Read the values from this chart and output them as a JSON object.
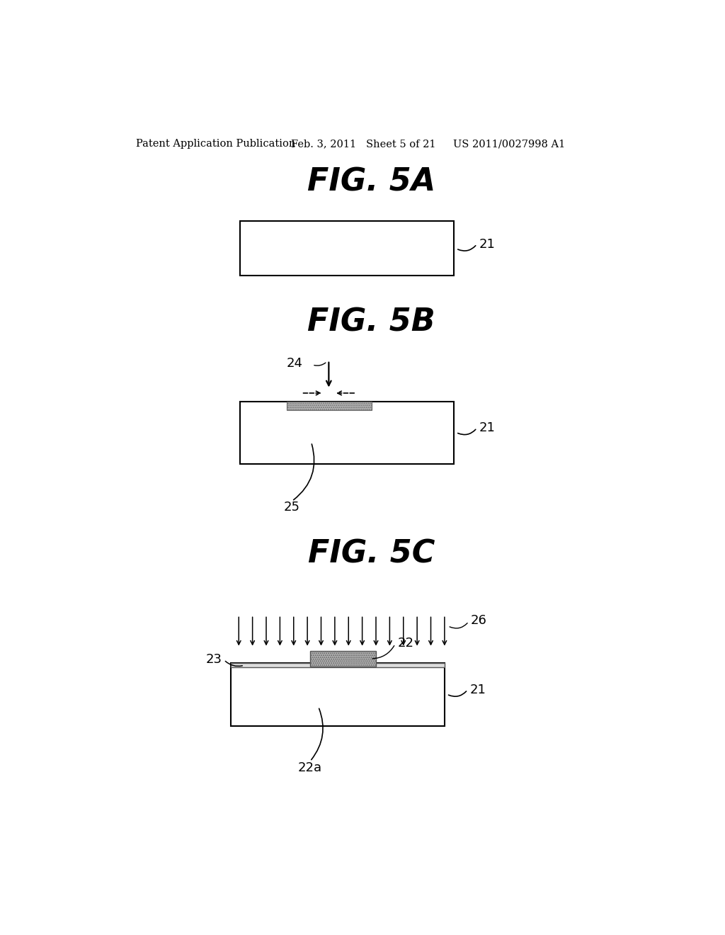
{
  "bg_color": "#ffffff",
  "text_color": "#000000",
  "header_left": "Patent Application Publication",
  "header_mid": "Feb. 3, 2011   Sheet 5 of 21",
  "header_right": "US 2011/0027998 A1",
  "fig5a_title": "FIG. 5A",
  "fig5b_title": "FIG. 5B",
  "fig5c_title": "FIG. 5C",
  "label_21": "21",
  "label_24": "24",
  "label_25": "25",
  "label_22": "22",
  "label_22a": "22a",
  "label_23": "23",
  "label_26": "26"
}
